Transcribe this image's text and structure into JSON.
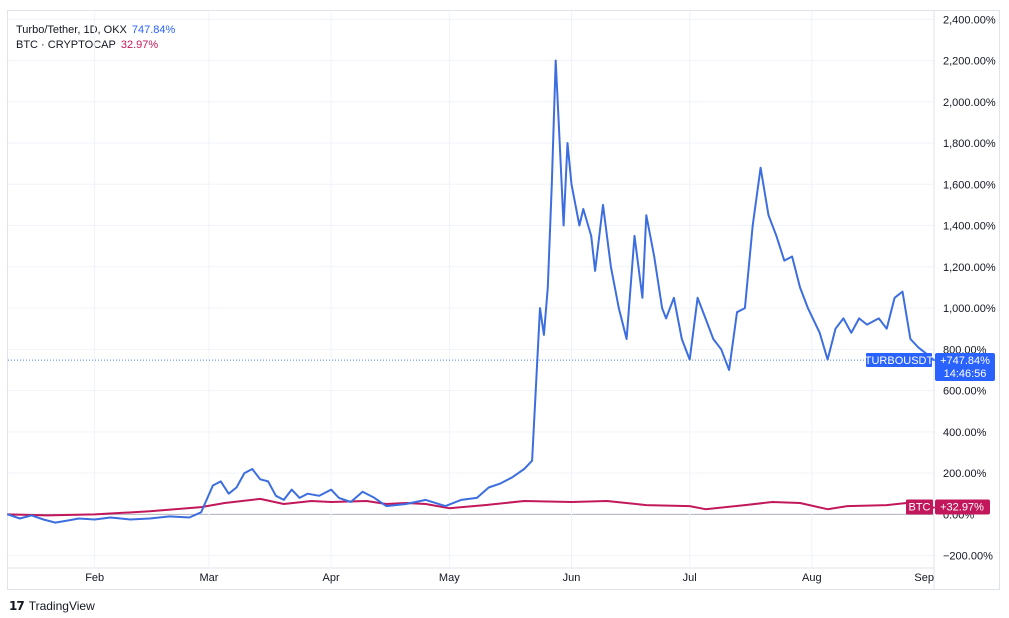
{
  "legend": {
    "primary": {
      "label": "Turbo/Tether, 1D, OKX",
      "value": "747.84%",
      "color": "#2962ff"
    },
    "secondary": {
      "label": "BTC · CRYPTOCAP",
      "value": "32.97%",
      "color": "#c2185b"
    }
  },
  "brand": {
    "name": "TradingView",
    "mark": "17"
  },
  "chart_data": {
    "type": "line",
    "y_axis": {
      "min": -260,
      "max": 2440,
      "ticks": [
        -200,
        0,
        200,
        400,
        600,
        800,
        1000,
        1200,
        1400,
        1600,
        1800,
        2000,
        2200,
        2400
      ],
      "tick_labels": [
        "−200.00%",
        "0.00%",
        "200.00%",
        "400.00%",
        "600.00%",
        "800.00%",
        "1,000.00%",
        "1,200.00%",
        "1,400.00%",
        "1,600.00%",
        "1,800.00%",
        "2,000.00%",
        "2,200.00%",
        "2,400.00%"
      ]
    },
    "x_axis": {
      "start": "2024-01-10",
      "end": "2024-09-01",
      "ticks": [
        {
          "date": "2024-02-01",
          "label": "Feb"
        },
        {
          "date": "2024-03-01",
          "label": "Mar"
        },
        {
          "date": "2024-04-01",
          "label": "Apr"
        },
        {
          "date": "2024-05-01",
          "label": "May"
        },
        {
          "date": "2024-06-01",
          "label": "Jun"
        },
        {
          "date": "2024-07-01",
          "label": "Jul"
        },
        {
          "date": "2024-08-01",
          "label": "Aug"
        },
        {
          "date": "2024-09-01",
          "label": "Sep"
        }
      ]
    },
    "grid": true,
    "last_price_line": {
      "value": 747.84,
      "color": "#2962ff"
    },
    "series": [
      {
        "name": "TURBOUSDT",
        "color": "#3d6ee0",
        "badge": {
          "label": "TURBOUSDT",
          "value": "+747.84%",
          "time": "14:46:56"
        },
        "points": [
          [
            "2024-01-10",
            0
          ],
          [
            "2024-01-13",
            -20
          ],
          [
            "2024-01-16",
            -5
          ],
          [
            "2024-01-19",
            -25
          ],
          [
            "2024-01-22",
            -40
          ],
          [
            "2024-01-25",
            -30
          ],
          [
            "2024-01-28",
            -20
          ],
          [
            "2024-02-01",
            -25
          ],
          [
            "2024-02-05",
            -15
          ],
          [
            "2024-02-10",
            -25
          ],
          [
            "2024-02-15",
            -20
          ],
          [
            "2024-02-20",
            -10
          ],
          [
            "2024-02-25",
            -15
          ],
          [
            "2024-02-28",
            10
          ],
          [
            "2024-03-02",
            140
          ],
          [
            "2024-03-04",
            160
          ],
          [
            "2024-03-06",
            100
          ],
          [
            "2024-03-08",
            130
          ],
          [
            "2024-03-10",
            200
          ],
          [
            "2024-03-12",
            220
          ],
          [
            "2024-03-14",
            170
          ],
          [
            "2024-03-16",
            160
          ],
          [
            "2024-03-18",
            90
          ],
          [
            "2024-03-20",
            70
          ],
          [
            "2024-03-22",
            120
          ],
          [
            "2024-03-24",
            80
          ],
          [
            "2024-03-26",
            100
          ],
          [
            "2024-03-29",
            90
          ],
          [
            "2024-04-01",
            120
          ],
          [
            "2024-04-03",
            80
          ],
          [
            "2024-04-06",
            60
          ],
          [
            "2024-04-09",
            110
          ],
          [
            "2024-04-12",
            80
          ],
          [
            "2024-04-15",
            40
          ],
          [
            "2024-04-20",
            50
          ],
          [
            "2024-04-25",
            70
          ],
          [
            "2024-04-30",
            40
          ],
          [
            "2024-05-04",
            70
          ],
          [
            "2024-05-08",
            80
          ],
          [
            "2024-05-11",
            130
          ],
          [
            "2024-05-14",
            150
          ],
          [
            "2024-05-17",
            180
          ],
          [
            "2024-05-20",
            220
          ],
          [
            "2024-05-22",
            260
          ],
          [
            "2024-05-24",
            1000
          ],
          [
            "2024-05-25",
            870
          ],
          [
            "2024-05-26",
            1100
          ],
          [
            "2024-05-27",
            1600
          ],
          [
            "2024-05-28",
            2200
          ],
          [
            "2024-05-29",
            1800
          ],
          [
            "2024-05-30",
            1400
          ],
          [
            "2024-05-31",
            1800
          ],
          [
            "2024-06-01",
            1600
          ],
          [
            "2024-06-03",
            1400
          ],
          [
            "2024-06-04",
            1480
          ],
          [
            "2024-06-06",
            1350
          ],
          [
            "2024-06-07",
            1180
          ],
          [
            "2024-06-09",
            1500
          ],
          [
            "2024-06-11",
            1200
          ],
          [
            "2024-06-13",
            1000
          ],
          [
            "2024-06-15",
            850
          ],
          [
            "2024-06-17",
            1350
          ],
          [
            "2024-06-19",
            1050
          ],
          [
            "2024-06-20",
            1450
          ],
          [
            "2024-06-22",
            1250
          ],
          [
            "2024-06-24",
            1000
          ],
          [
            "2024-06-25",
            950
          ],
          [
            "2024-06-27",
            1050
          ],
          [
            "2024-06-29",
            850
          ],
          [
            "2024-07-01",
            750
          ],
          [
            "2024-07-03",
            1050
          ],
          [
            "2024-07-05",
            950
          ],
          [
            "2024-07-07",
            850
          ],
          [
            "2024-07-09",
            800
          ],
          [
            "2024-07-11",
            700
          ],
          [
            "2024-07-13",
            980
          ],
          [
            "2024-07-15",
            1000
          ],
          [
            "2024-07-17",
            1400
          ],
          [
            "2024-07-19",
            1680
          ],
          [
            "2024-07-21",
            1450
          ],
          [
            "2024-07-23",
            1350
          ],
          [
            "2024-07-25",
            1230
          ],
          [
            "2024-07-27",
            1250
          ],
          [
            "2024-07-29",
            1100
          ],
          [
            "2024-07-31",
            1000
          ],
          [
            "2024-08-03",
            880
          ],
          [
            "2024-08-05",
            750
          ],
          [
            "2024-08-07",
            900
          ],
          [
            "2024-08-09",
            950
          ],
          [
            "2024-08-11",
            880
          ],
          [
            "2024-08-13",
            950
          ],
          [
            "2024-08-15",
            920
          ],
          [
            "2024-08-18",
            950
          ],
          [
            "2024-08-20",
            900
          ],
          [
            "2024-08-22",
            1050
          ],
          [
            "2024-08-24",
            1080
          ],
          [
            "2024-08-26",
            850
          ],
          [
            "2024-08-28",
            810
          ],
          [
            "2024-08-30",
            780
          ],
          [
            "2024-09-01",
            748
          ]
        ]
      },
      {
        "name": "BTC",
        "color": "#c2185b",
        "badge": {
          "label": "BTC",
          "value": "+32.97%"
        },
        "points": [
          [
            "2024-01-10",
            0
          ],
          [
            "2024-01-20",
            -5
          ],
          [
            "2024-02-01",
            0
          ],
          [
            "2024-02-15",
            15
          ],
          [
            "2024-02-28",
            35
          ],
          [
            "2024-03-05",
            55
          ],
          [
            "2024-03-14",
            75
          ],
          [
            "2024-03-20",
            50
          ],
          [
            "2024-03-27",
            65
          ],
          [
            "2024-04-01",
            60
          ],
          [
            "2024-04-10",
            65
          ],
          [
            "2024-04-15",
            50
          ],
          [
            "2024-04-20",
            55
          ],
          [
            "2024-04-25",
            50
          ],
          [
            "2024-05-01",
            30
          ],
          [
            "2024-05-10",
            45
          ],
          [
            "2024-05-20",
            65
          ],
          [
            "2024-06-01",
            60
          ],
          [
            "2024-06-10",
            65
          ],
          [
            "2024-06-20",
            45
          ],
          [
            "2024-07-01",
            40
          ],
          [
            "2024-07-05",
            25
          ],
          [
            "2024-07-15",
            45
          ],
          [
            "2024-07-22",
            60
          ],
          [
            "2024-07-29",
            55
          ],
          [
            "2024-08-05",
            25
          ],
          [
            "2024-08-10",
            40
          ],
          [
            "2024-08-20",
            45
          ],
          [
            "2024-08-25",
            55
          ],
          [
            "2024-09-01",
            33
          ]
        ]
      }
    ]
  }
}
